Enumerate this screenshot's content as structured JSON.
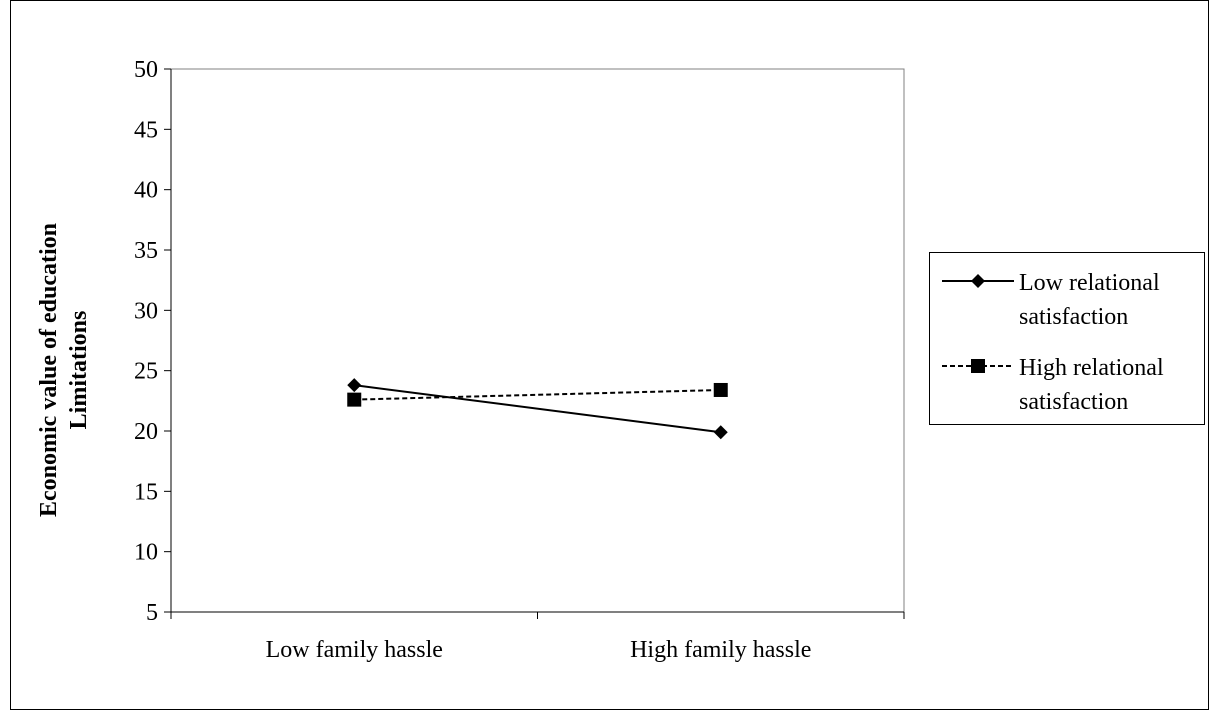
{
  "chart_data": {
    "type": "line",
    "categories": [
      "Low family hassle",
      "High family hassle"
    ],
    "series": [
      {
        "name": "Low relational satisfaction",
        "name_lines": [
          "Low relational",
          "satisfaction"
        ],
        "values": [
          23.8,
          19.9
        ],
        "marker": "diamond",
        "line_style": "solid",
        "color": "#000000"
      },
      {
        "name": "High relational satisfaction",
        "name_lines": [
          "High relational",
          "satisfaction"
        ],
        "values": [
          22.6,
          23.4
        ],
        "marker": "square",
        "line_style": "dashed",
        "color": "#000000"
      }
    ],
    "ylabel": "Economic value of education Limitations",
    "ylabel_lines": [
      "Economic value of education",
      "Limitations"
    ],
    "ylim": [
      5,
      50
    ],
    "yticks": [
      5,
      10,
      15,
      20,
      25,
      30,
      35,
      40,
      45,
      50
    ],
    "ytick_labels": [
      "5",
      "10",
      "15",
      "20",
      "25",
      "30",
      "35",
      "40",
      "45",
      "50"
    ],
    "grid": false,
    "legend": "right"
  }
}
